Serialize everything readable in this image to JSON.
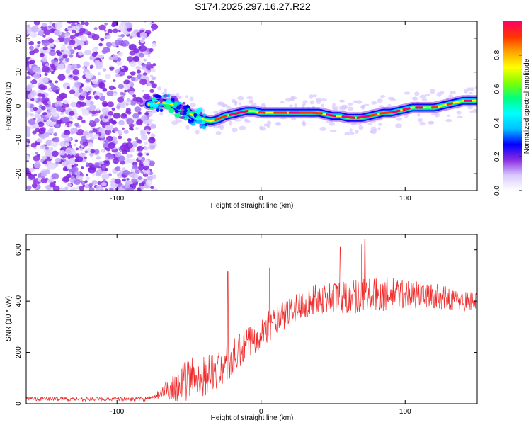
{
  "title": "S174.2025.297.16.27.R22",
  "chart_data": [
    {
      "type": "heatmap",
      "name": "spectrogram",
      "xlabel": "Height of straight line (km)",
      "ylabel": "Frequency (Hz)",
      "xlim": [
        -163,
        150
      ],
      "ylim": [
        -25,
        25
      ],
      "xticks": [
        -100,
        0,
        100
      ],
      "yticks": [
        -20,
        -10,
        0,
        10,
        20
      ],
      "signal_track": {
        "x": [
          -78,
          -70,
          -62,
          -55,
          -50,
          -45,
          -40,
          -35,
          -30,
          -25,
          -20,
          -15,
          -10,
          -5,
          0,
          5,
          10,
          15,
          20,
          25,
          30,
          35,
          40,
          45,
          50,
          55,
          60,
          65,
          70,
          75,
          80,
          85,
          90,
          95,
          100,
          105,
          110,
          115,
          120,
          125,
          130,
          135,
          140,
          145,
          150
        ],
        "freq": [
          0.5,
          1,
          0.5,
          -1,
          -2,
          -3.5,
          -4,
          -4.5,
          -4,
          -3,
          -2.5,
          -2,
          -1.5,
          -1.5,
          -2,
          -2,
          -2,
          -2,
          -2,
          -2,
          -2,
          -2,
          -2,
          -2.5,
          -3,
          -3,
          -3.5,
          -3.5,
          -3.5,
          -3,
          -2.5,
          -2,
          -2,
          -1.5,
          -1,
          -0.5,
          -0.5,
          -0.5,
          -0.5,
          0,
          0.5,
          1,
          1.5,
          1.5,
          1.5
        ]
      },
      "noise_region_x": [
        -163,
        -78
      ],
      "colorbar": {
        "label": "Normalized spectral amplitude",
        "range": [
          0,
          1
        ],
        "ticks": [
          "0.0",
          "0.2",
          "0.4",
          "0.6",
          "0.8"
        ],
        "colors": [
          "#ffffff",
          "#d8c8ff",
          "#8a2be2",
          "#0000ff",
          "#00bfff",
          "#00ffff",
          "#00ff7f",
          "#7fff00",
          "#ffff00",
          "#ffa500",
          "#ff3300",
          "#ff0066"
        ]
      }
    },
    {
      "type": "line",
      "name": "snr",
      "xlabel": "Height of straight line (km)",
      "ylabel": "SNR (10 * v/v)",
      "xlim": [
        -163,
        150
      ],
      "ylim": [
        0,
        660
      ],
      "xticks": [
        -100,
        0,
        100
      ],
      "yticks": [
        0,
        200,
        400,
        600
      ],
      "color": "#ee2a2a",
      "envelope": {
        "x": [
          -163,
          -120,
          -90,
          -75,
          -70,
          -60,
          -50,
          -40,
          -30,
          -20,
          -10,
          0,
          10,
          20,
          30,
          40,
          60,
          80,
          100,
          120,
          140,
          150
        ],
        "mean": [
          20,
          18,
          18,
          20,
          40,
          70,
          100,
          110,
          130,
          170,
          230,
          280,
          320,
          360,
          390,
          410,
          420,
          425,
          430,
          420,
          400,
          400
        ],
        "spread": [
          8,
          8,
          8,
          10,
          20,
          60,
          90,
          80,
          70,
          80,
          70,
          60,
          60,
          60,
          60,
          60,
          70,
          70,
          60,
          50,
          40,
          40
        ]
      },
      "peaks": [
        {
          "x": -23,
          "y": 515
        },
        {
          "x": 6,
          "y": 530
        },
        {
          "x": 55,
          "y": 610
        },
        {
          "x": 72,
          "y": 640
        },
        {
          "x": 70,
          "y": 620
        }
      ]
    }
  ]
}
